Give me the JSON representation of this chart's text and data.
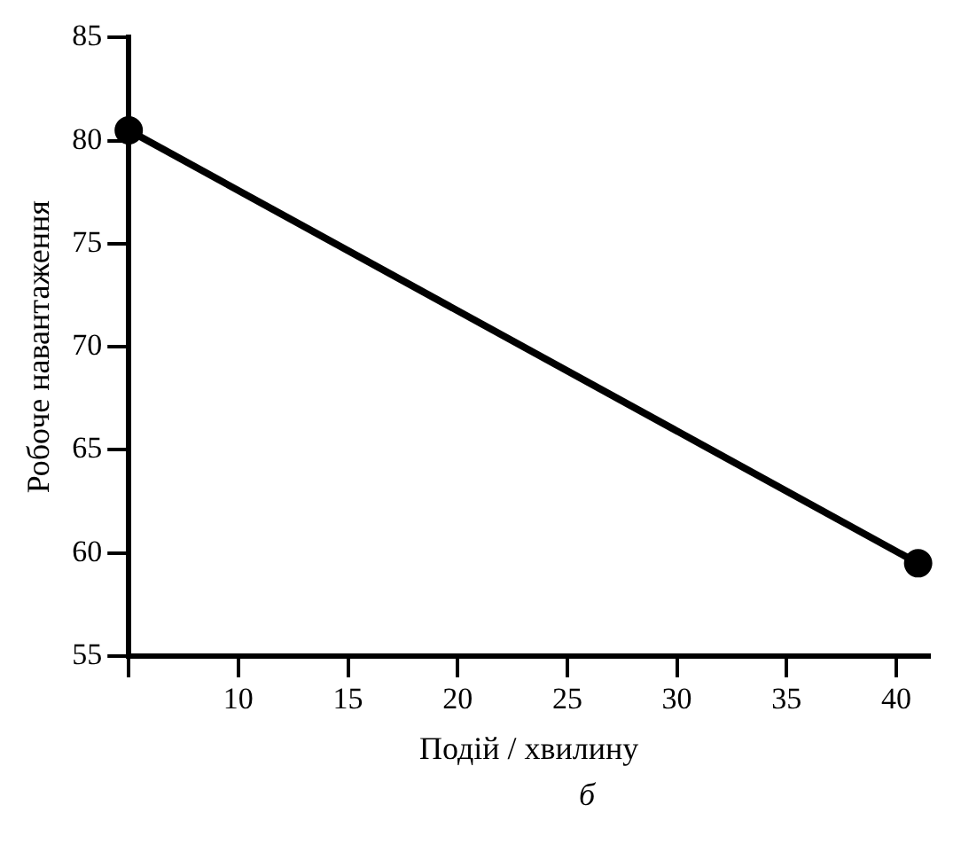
{
  "chart_data": {
    "type": "line",
    "xlabel": "Подій / хвилину",
    "ylabel": "Робоче навантаження",
    "annotations": [
      "б"
    ],
    "x": [
      5,
      41
    ],
    "series": [
      {
        "color": "#000000",
        "values": [
          80.5,
          59.5
        ]
      }
    ],
    "xlim": [
      5,
      41.5
    ],
    "xticks": [
      {
        "value": 5,
        "label": null
      },
      10,
      15,
      20,
      25,
      30,
      35,
      40
    ],
    "ylim": [
      55,
      85
    ],
    "yticks": [
      55,
      60,
      65,
      70,
      75,
      80,
      85
    ],
    "grid": false,
    "legend": false,
    "marker": "circle",
    "line_style": "solid"
  }
}
